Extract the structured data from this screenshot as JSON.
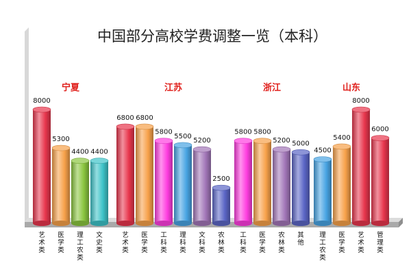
{
  "chart_data": {
    "type": "bar",
    "title": "中国部分高校学费调整一览（本科）",
    "groups": [
      {
        "name": "宁夏",
        "bars": [
          {
            "category": "艺术类",
            "value": 8000,
            "color": "#e8364d"
          },
          {
            "category": "医学类",
            "value": 5300,
            "color": "#f7a14a"
          },
          {
            "category": "理工农类",
            "value": 4400,
            "color": "#8bc63f"
          },
          {
            "category": "文史类",
            "value": 4400,
            "color": "#3dc3c8"
          }
        ]
      },
      {
        "name": "江苏",
        "bars": [
          {
            "category": "艺术类",
            "value": 6800,
            "color": "#e8364d"
          },
          {
            "category": "医学类",
            "value": 6800,
            "color": "#f7a14a"
          },
          {
            "category": "工科类",
            "value": 5800,
            "color": "#ff3de0"
          },
          {
            "category": "理科类",
            "value": 5500,
            "color": "#48a4e3"
          },
          {
            "category": "文科类",
            "value": 5200,
            "color": "#a276b8"
          },
          {
            "category": "农林类",
            "value": 2500,
            "color": "#5b66c6"
          }
        ]
      },
      {
        "name": "浙江",
        "bars": [
          {
            "category": "工科类",
            "value": 5800,
            "color": "#ff3de0"
          },
          {
            "category": "医学类",
            "value": 5800,
            "color": "#f7a14a"
          },
          {
            "category": "农林类",
            "value": 5200,
            "color": "#a276b8"
          },
          {
            "category": "其他",
            "value": 5000,
            "color": "#5b66c6"
          }
        ]
      },
      {
        "name": "山东",
        "bars": [
          {
            "category": "理工农类",
            "value": 4500,
            "color": "#48a4e3"
          },
          {
            "category": "医学类",
            "value": 5400,
            "color": "#f7a14a"
          },
          {
            "category": "艺术类",
            "value": 8000,
            "color": "#e8364d"
          },
          {
            "category": "管理类",
            "value": 6000,
            "color": "#e8364d"
          }
        ]
      }
    ],
    "ylim": [
      0,
      9000
    ],
    "grid": false,
    "legend": "none"
  }
}
